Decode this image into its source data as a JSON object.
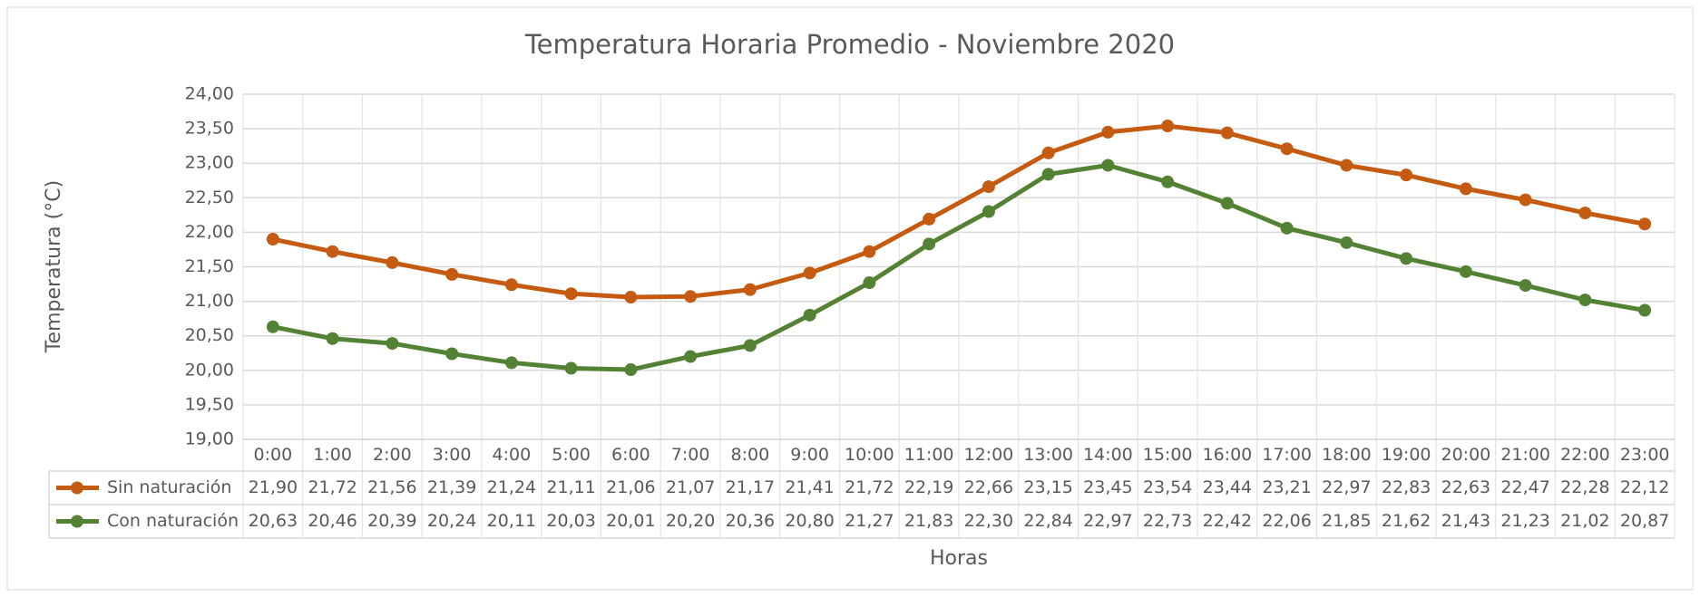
{
  "chart_data": {
    "type": "line",
    "title": "Temperatura Horaria Promedio - Noviembre 2020",
    "xlabel": "Horas",
    "ylabel": "Temperatura (°C)",
    "categories": [
      "0:00",
      "1:00",
      "2:00",
      "3:00",
      "4:00",
      "5:00",
      "6:00",
      "7:00",
      "8:00",
      "9:00",
      "10:00",
      "11:00",
      "12:00",
      "13:00",
      "14:00",
      "15:00",
      "16:00",
      "17:00",
      "18:00",
      "19:00",
      "20:00",
      "21:00",
      "22:00",
      "23:00"
    ],
    "series": [
      {
        "name": "Sin naturación",
        "color": "#c55a11",
        "values": [
          21.9,
          21.72,
          21.56,
          21.39,
          21.24,
          21.11,
          21.06,
          21.07,
          21.17,
          21.41,
          21.72,
          22.19,
          22.66,
          23.15,
          23.45,
          23.54,
          23.44,
          23.21,
          22.97,
          22.83,
          22.63,
          22.47,
          22.28,
          22.12
        ],
        "value_labels": [
          "21,90",
          "21,72",
          "21,56",
          "21,39",
          "21,24",
          "21,11",
          "21,06",
          "21,07",
          "21,17",
          "21,41",
          "21,72",
          "22,19",
          "22,66",
          "23,15",
          "23,45",
          "23,54",
          "23,44",
          "23,21",
          "22,97",
          "22,83",
          "22,63",
          "22,47",
          "22,28",
          "22,12"
        ]
      },
      {
        "name": "Con naturación",
        "color": "#548235",
        "values": [
          20.63,
          20.46,
          20.39,
          20.24,
          20.11,
          20.03,
          20.01,
          20.2,
          20.36,
          20.8,
          21.27,
          21.83,
          22.3,
          22.84,
          22.97,
          22.73,
          22.42,
          22.06,
          21.85,
          21.62,
          21.43,
          21.23,
          21.02,
          20.87
        ],
        "value_labels": [
          "20,63",
          "20,46",
          "20,39",
          "20,24",
          "20,11",
          "20,03",
          "20,01",
          "20,20",
          "20,36",
          "20,80",
          "21,27",
          "21,83",
          "22,30",
          "22,84",
          "22,97",
          "22,73",
          "22,42",
          "22,06",
          "21,85",
          "21,62",
          "21,43",
          "21,23",
          "21,02",
          "20,87"
        ]
      }
    ],
    "ylim": [
      19,
      24
    ],
    "yticks": [
      {
        "value": 19,
        "label": "19,00"
      },
      {
        "value": 19.5,
        "label": "19,50"
      },
      {
        "value": 20,
        "label": "20,00"
      },
      {
        "value": 20.5,
        "label": "20,50"
      },
      {
        "value": 21,
        "label": "21,00"
      },
      {
        "value": 21.5,
        "label": "21,50"
      },
      {
        "value": 22,
        "label": "22,00"
      },
      {
        "value": 22.5,
        "label": "22,50"
      },
      {
        "value": 23,
        "label": "23,00"
      },
      {
        "value": 23.5,
        "label": "23,50"
      },
      {
        "value": 24,
        "label": "24,00"
      }
    ],
    "grid": true
  }
}
